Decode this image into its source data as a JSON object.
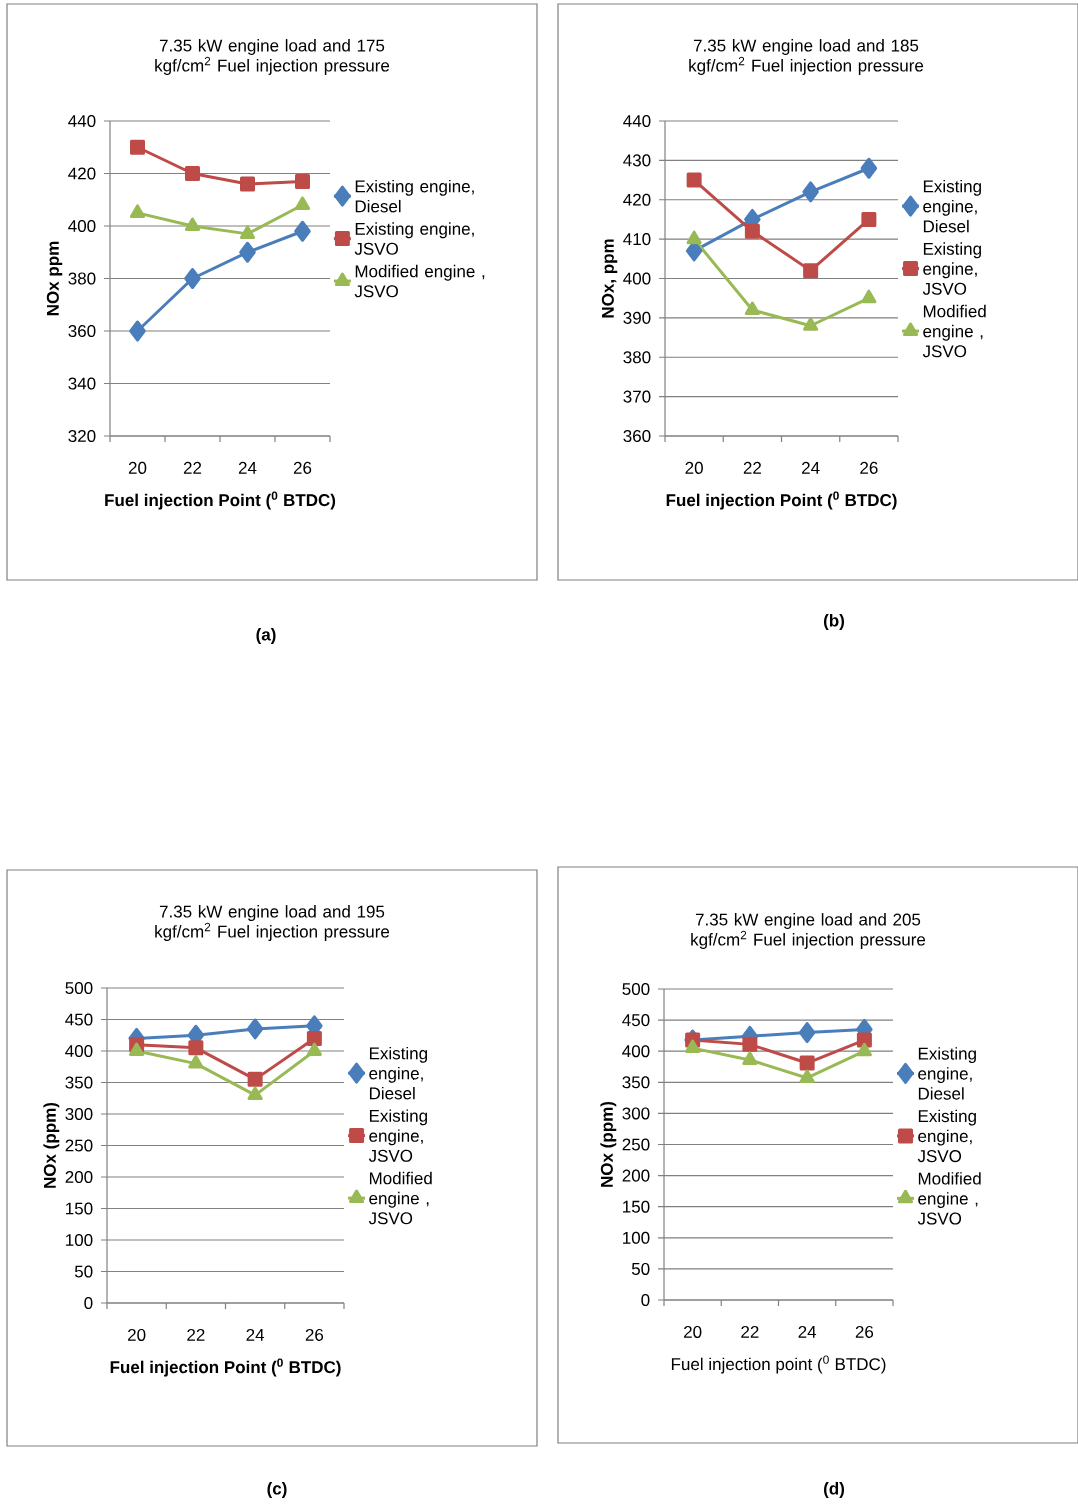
{
  "chart_data": [
    {
      "type": "line",
      "title": "7.35 kW engine load and 175 kgf/cm$^{2}$ Fuel injection pressure",
      "xlabel": "Fuel injection Point ($^{0}$ BTDC)",
      "ylabel": "NOx ppm",
      "categories": [
        "20",
        "22",
        "24",
        "26"
      ],
      "ylim": [
        320,
        440
      ],
      "yticks": [
        320,
        340,
        360,
        380,
        400,
        420,
        440
      ],
      "grid": "y",
      "legend": "right",
      "annotations": [
        "(a)"
      ],
      "series": [
        {
          "name": "Existing engine, Diesel",
          "color": "#4a7ebb",
          "marker": "diamond",
          "values": [
            360,
            380,
            390,
            398
          ]
        },
        {
          "name": "Existing engine, JSVO",
          "color": "#be4b48",
          "marker": "square",
          "values": [
            430,
            420,
            416,
            417
          ]
        },
        {
          "name": "Modified engine , JSVO",
          "color": "#98b954",
          "marker": "triangle",
          "values": [
            405,
            400,
            397,
            408
          ]
        }
      ]
    },
    {
      "type": "line",
      "title": "7.35 kW engine load and 185 kgf/cm$^{2}$ Fuel injection pressure",
      "xlabel": "Fuel injection Point ($^{0}$ BTDC)",
      "ylabel": "NOx, ppm",
      "categories": [
        "20",
        "22",
        "24",
        "26"
      ],
      "ylim": [
        360,
        440
      ],
      "yticks": [
        360,
        370,
        380,
        390,
        400,
        410,
        420,
        430,
        440
      ],
      "grid": "y",
      "legend": "right",
      "annotations": [
        "(b)"
      ],
      "series": [
        {
          "name": "Existing engine, Diesel",
          "color": "#4a7ebb",
          "marker": "diamond",
          "values": [
            407,
            415,
            422,
            428
          ]
        },
        {
          "name": "Existing engine, JSVO",
          "color": "#be4b48",
          "marker": "square",
          "values": [
            425,
            412,
            402,
            415
          ]
        },
        {
          "name": "Modified engine , JSVO",
          "color": "#98b954",
          "marker": "triangle",
          "values": [
            410,
            392,
            388,
            395
          ]
        }
      ]
    },
    {
      "type": "line",
      "title": "7.35 kW engine load and 195 kgf/cm$^{2}$ Fuel injection pressure",
      "xlabel": "Fuel injection Point ($^{0}$ BTDC)",
      "ylabel": "NOx (ppm)",
      "categories": [
        "20",
        "22",
        "24",
        "26"
      ],
      "ylim": [
        0,
        500
      ],
      "yticks": [
        0,
        50,
        100,
        150,
        200,
        250,
        300,
        350,
        400,
        450,
        500
      ],
      "grid": "y",
      "legend": "right",
      "annotations": [
        "(c)"
      ],
      "series": [
        {
          "name": "Existing engine, Diesel",
          "color": "#4a7ebb",
          "marker": "diamond",
          "values": [
            420,
            425,
            435,
            440
          ]
        },
        {
          "name": "Existing engine, JSVO",
          "color": "#be4b48",
          "marker": "square",
          "values": [
            410,
            405,
            355,
            420
          ]
        },
        {
          "name": "Modified engine , JSVO",
          "color": "#98b954",
          "marker": "triangle",
          "values": [
            400,
            380,
            330,
            400
          ]
        }
      ]
    },
    {
      "type": "line",
      "title": "7.35 kW engine load and 205 kgf/cm$^{2}$ Fuel injection pressure",
      "xlabel": "Fuel injection point ($^{0}$ BTDC)",
      "ylabel": "NOx (ppm)",
      "categories": [
        "20",
        "22",
        "24",
        "26"
      ],
      "ylim": [
        0,
        500
      ],
      "yticks": [
        0,
        50,
        100,
        150,
        200,
        250,
        300,
        350,
        400,
        450,
        500
      ],
      "grid": "y",
      "legend": "right",
      "annotations": [
        "(d)"
      ],
      "series": [
        {
          "name": "Existing engine, Diesel",
          "color": "#4a7ebb",
          "marker": "diamond",
          "values": [
            418,
            424,
            430,
            435
          ]
        },
        {
          "name": "Existing engine, JSVO",
          "color": "#be4b48",
          "marker": "square",
          "values": [
            418,
            411,
            381,
            418
          ]
        },
        {
          "name": "Modified engine , JSVO",
          "color": "#98b954",
          "marker": "triangle",
          "values": [
            405,
            386,
            357,
            400
          ]
        }
      ]
    }
  ]
}
